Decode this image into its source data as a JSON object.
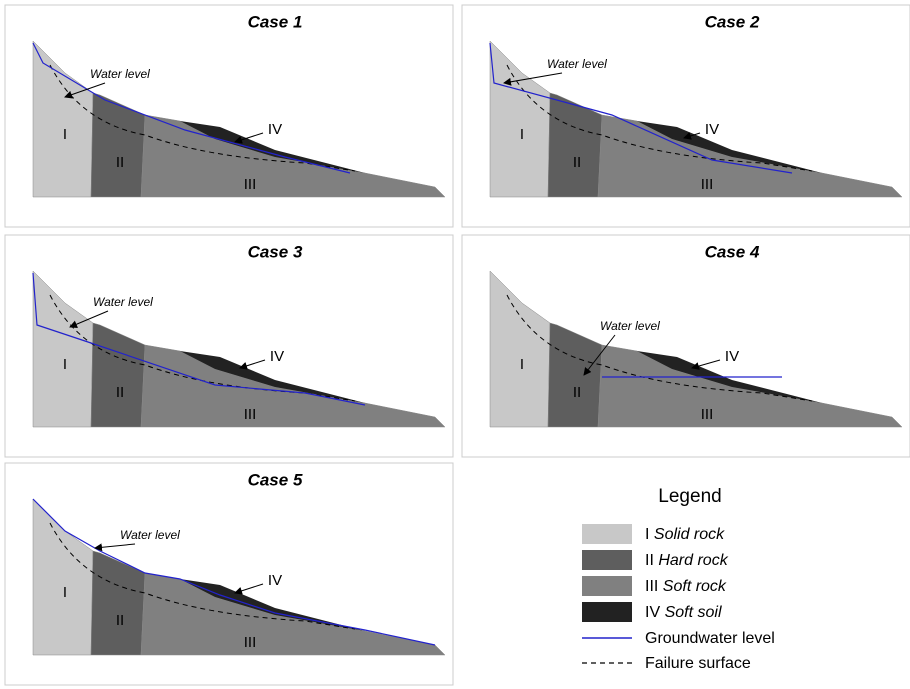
{
  "panels": [
    {
      "title": "Case 1",
      "water_label": "Water level",
      "zones": [
        "I",
        "II",
        "III",
        "IV"
      ]
    },
    {
      "title": "Case 2",
      "water_label": "Water level",
      "zones": [
        "I",
        "II",
        "III",
        "IV"
      ]
    },
    {
      "title": "Case 3",
      "water_label": "Water level",
      "zones": [
        "I",
        "II",
        "III",
        "IV"
      ]
    },
    {
      "title": "Case 4",
      "water_label": "Water level",
      "zones": [
        "I",
        "II",
        "III",
        "IV"
      ]
    },
    {
      "title": "Case 5",
      "water_label": "Water level",
      "zones": [
        "I",
        "II",
        "III",
        "IV"
      ]
    }
  ],
  "legend": {
    "title": "Legend",
    "items": [
      {
        "numeral": "I",
        "name": "Solid rock"
      },
      {
        "numeral": "II",
        "name": "Hard rock"
      },
      {
        "numeral": "III",
        "name": "Soft rock"
      },
      {
        "numeral": "IV",
        "name": "Soft soil"
      },
      {
        "name": "Groundwater level"
      },
      {
        "name": "Failure surface"
      }
    ]
  }
}
